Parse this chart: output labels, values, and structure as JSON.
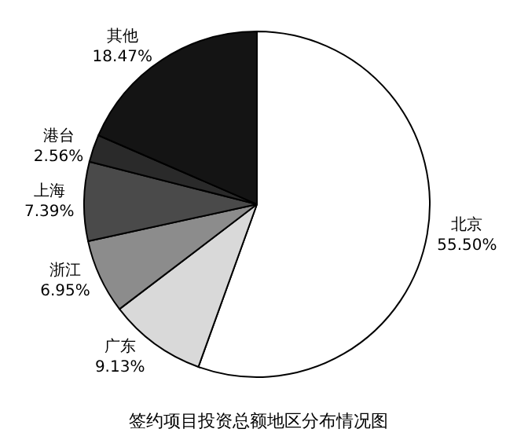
{
  "chart_data": {
    "type": "pie",
    "title": "签约项目投资总额地区分布情况图",
    "categories": [
      "北京",
      "广东",
      "浙江",
      "上海",
      "港台",
      "其他"
    ],
    "values": [
      55.5,
      9.13,
      6.95,
      7.39,
      2.56,
      18.47
    ],
    "value_labels": [
      "55.50%",
      "9.13%",
      "6.95%",
      "7.39%",
      "2.56%",
      "18.47%"
    ],
    "colors": [
      "#ffffff",
      "#d9d9d9",
      "#8c8c8c",
      "#4a4a4a",
      "#2a2a2a",
      "#141414"
    ],
    "legend": false
  }
}
